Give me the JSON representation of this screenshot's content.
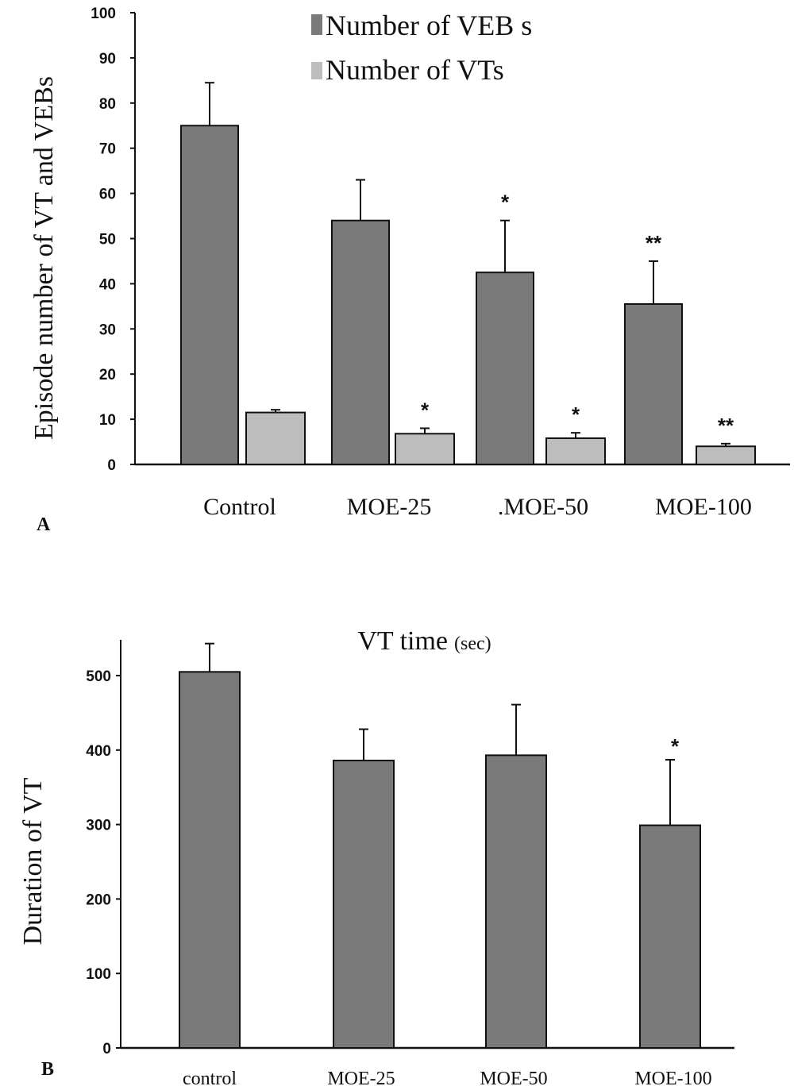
{
  "colors": {
    "dark": "#7a7a7a",
    "light": "#bdbdbd",
    "stroke": "#111111"
  },
  "chart_data": [
    {
      "type": "bar",
      "panel_label": "A",
      "ylabel": "Episode number of VT and VEBs",
      "xlabel": "",
      "ylim": [
        0,
        100
      ],
      "yticks": [
        "0",
        "10",
        "20",
        "30",
        "40",
        "50",
        "60",
        "70",
        "80",
        "90",
        "100"
      ],
      "categories": [
        "Control",
        "MOE-25",
        ".MOE-50",
        "MOE-100"
      ],
      "legend_position": "top-center",
      "series": [
        {
          "name": "Number of VEB s",
          "color": "dark",
          "values": [
            75,
            54,
            42.5,
            35.5
          ],
          "errors": [
            9.5,
            9,
            11.5,
            9.5
          ],
          "significance": [
            "",
            "",
            "*",
            "**"
          ]
        },
        {
          "name": "Number of VTs",
          "color": "light",
          "values": [
            11.5,
            6.8,
            5.8,
            4
          ],
          "errors": [
            0.6,
            1.2,
            1.2,
            0.6
          ],
          "significance": [
            "",
            "*",
            "*",
            "**"
          ]
        }
      ]
    },
    {
      "type": "bar",
      "panel_label": "B",
      "title": "VT time",
      "title_unit": "(sec)",
      "ylabel": "Duration of  VT",
      "xlabel": "",
      "ylim": [
        0,
        550
      ],
      "yticks": [
        "0",
        "100",
        "200",
        "300",
        "400",
        "500"
      ],
      "categories": [
        "control",
        "MOE-25",
        "MOE-50",
        "MOE-100"
      ],
      "series": [
        {
          "color": "dark",
          "values": [
            505,
            386,
            393,
            299
          ],
          "errors": [
            38,
            42,
            68,
            88
          ],
          "significance": [
            "",
            "",
            "",
            "*"
          ]
        }
      ]
    }
  ]
}
